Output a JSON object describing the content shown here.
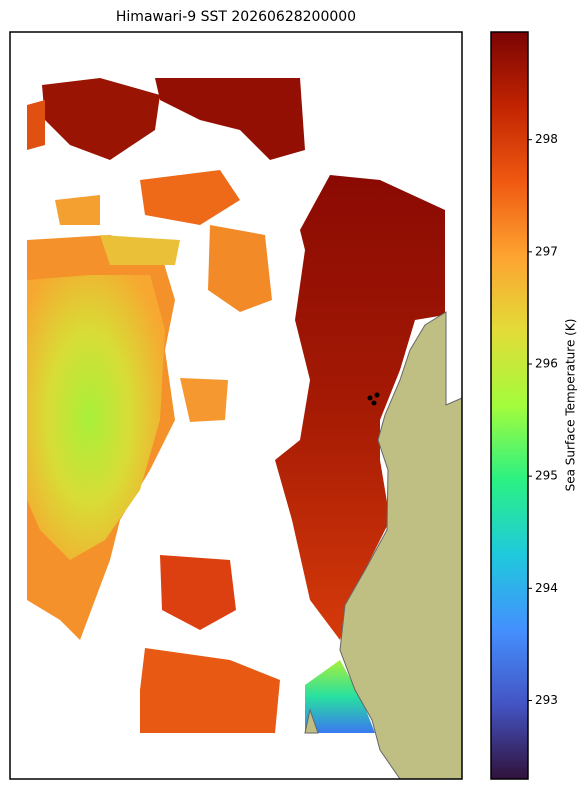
{
  "title": "Himawari-9 SST 20260628200000",
  "colorbar": {
    "label": "Sea Surface Temperature (K)",
    "lim": [
      292.3,
      298.96
    ],
    "ticks": [
      293,
      294,
      295,
      296,
      297,
      298
    ]
  }
}
